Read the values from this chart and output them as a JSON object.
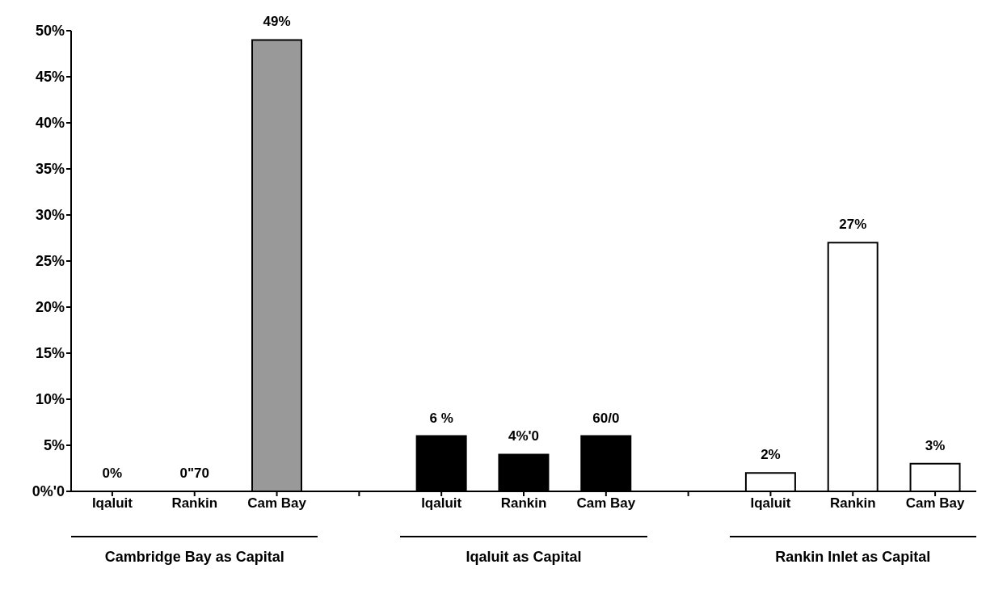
{
  "chart_data": {
    "type": "bar",
    "categories": [
      "Iqaluit",
      "Rankin",
      "Cam Bay",
      null,
      "Iqaluit",
      "Rankin",
      "Cam Bay",
      null,
      "Iqaluit",
      "Rankin",
      "Cam Bay"
    ],
    "values": [
      0,
      0,
      49,
      null,
      6,
      4,
      6,
      null,
      2,
      27,
      3
    ],
    "colors": [
      "#999999",
      "#999999",
      "#999999",
      "#ffffff",
      "#000000",
      "#000000",
      "#000000",
      "#ffffff",
      "#ffffff",
      "#ffffff",
      "#ffffff"
    ],
    "value_labels": [
      "0%",
      "0\"70",
      "49%",
      null,
      "6 %",
      "4%'0",
      "60/0",
      null,
      "2%",
      "27%",
      "3%"
    ],
    "ylim": [
      0,
      50
    ],
    "yticks": [
      {
        "value": 0,
        "label": "0%'0"
      },
      {
        "value": 5,
        "label": "5%"
      },
      {
        "value": 10,
        "label": "10%"
      },
      {
        "value": 15,
        "label": "15%"
      },
      {
        "value": 20,
        "label": "20%"
      },
      {
        "value": 25,
        "label": "25%"
      },
      {
        "value": 30,
        "label": "30%"
      },
      {
        "value": 35,
        "label": "35%"
      },
      {
        "value": 40,
        "label": "40%"
      },
      {
        "value": 45,
        "label": "45%"
      },
      {
        "value": 50,
        "label": "50%"
      }
    ],
    "annotations": [
      "Cambridge Bay as Capital",
      "Iqaluit as Capital",
      "Rankin Inlet as Capital"
    ],
    "grid": false,
    "legend": false
  }
}
